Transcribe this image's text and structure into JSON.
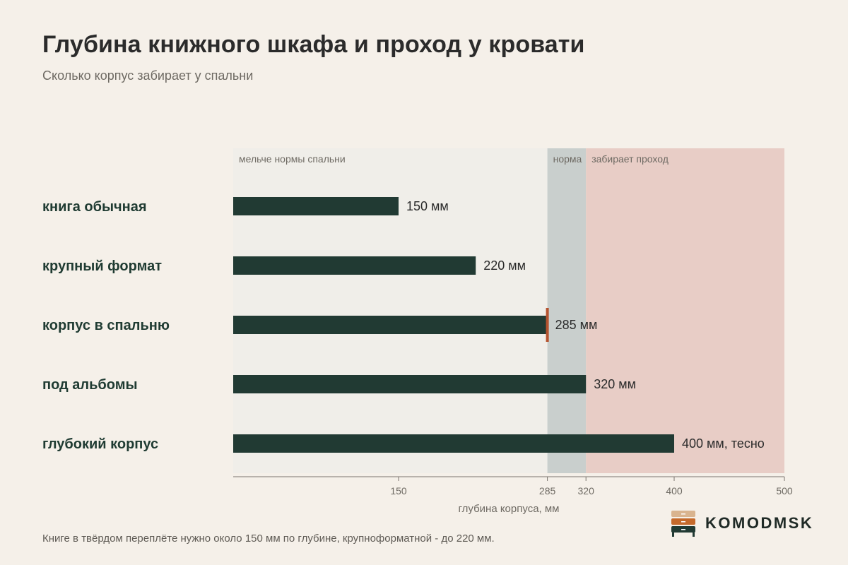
{
  "title": "Глубина книжного шкафа и проход у кровати",
  "subtitle": "Сколько корпус забирает у спальни",
  "chart_data": {
    "type": "bar",
    "orientation": "horizontal",
    "categories": [
      "книга обычная",
      "крупный формат",
      "корпус в спальню",
      "под альбомы",
      "глубокий корпус"
    ],
    "values": [
      150,
      220,
      285,
      320,
      400
    ],
    "value_labels": [
      "150 мм",
      "220 мм",
      "285 мм",
      "320 мм",
      "400 мм, тесно"
    ],
    "highlight_index": 2,
    "xlabel": "глубина корпуса, мм",
    "xlim": [
      0,
      500
    ],
    "ticks": [
      150,
      285,
      320,
      400,
      500
    ],
    "zones": [
      {
        "label": "мельче нормы спальни",
        "from": 0,
        "to": 285,
        "color": "#f0eee9"
      },
      {
        "label": "норма",
        "from": 285,
        "to": 320,
        "color": "#c9cfcd"
      },
      {
        "label": "забирает проход",
        "from": 320,
        "to": 500,
        "color": "#e8cdc6"
      }
    ],
    "bar_color": "#213a33",
    "highlight_color": "#b5532f",
    "grid": false
  },
  "note": "Книге в твёрдом переплёте нужно около 150 мм по глубине, крупноформатной - до 220 мм.",
  "brand": {
    "name": "KOMODMSK",
    "logo_icon": "chest-of-drawers-icon",
    "colors": [
      "#d9b48f",
      "#c56a2c",
      "#213a33"
    ]
  }
}
